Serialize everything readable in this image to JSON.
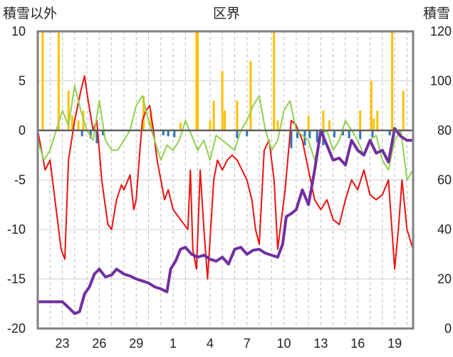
{
  "chart_data": {
    "type": "line",
    "title": "区界",
    "ylabel_left": "積雪以外",
    "ylabel_right": "積雪",
    "left_axis": {
      "min": -20,
      "max": 10,
      "ticks": [
        10,
        5,
        0,
        -5,
        -10,
        -15,
        -20
      ]
    },
    "right_axis": {
      "min": 0,
      "max": 120,
      "ticks": [
        120,
        100,
        80,
        60,
        40,
        20,
        0
      ]
    },
    "x_axis": {
      "min": 21,
      "max": 51.5,
      "tick_positions": [
        23,
        26,
        29,
        32,
        35,
        38,
        41,
        44,
        47,
        50
      ],
      "tick_labels": [
        "23",
        "26",
        "29",
        "1",
        "4",
        "7",
        "10",
        "13",
        "16",
        "19"
      ]
    },
    "grid": {
      "vertical_dashed": true,
      "horizontal": true,
      "zero_line": true
    },
    "colors": {
      "temp_max": "#f0f000",
      "temp_min": "#ee1111",
      "temp_mean": "#92d050",
      "precip": "#ffc000",
      "snow_decrease": "#2e75b6",
      "snow_depth": "#7030a0",
      "axes": "#808080",
      "zero_line": "#606060"
    },
    "series": [
      {
        "axis": "left",
        "style": "line",
        "color": "#ee1111",
        "points": [
          [
            21,
            0
          ],
          [
            21.3,
            -2
          ],
          [
            21.6,
            -4
          ],
          [
            22,
            -3
          ],
          [
            22.5,
            -8
          ],
          [
            22.9,
            -12
          ],
          [
            23.2,
            -13
          ],
          [
            23.5,
            -3
          ],
          [
            24,
            1
          ],
          [
            24.5,
            4
          ],
          [
            24.8,
            5.5
          ],
          [
            25.1,
            3
          ],
          [
            25.5,
            0
          ],
          [
            25.8,
            1
          ],
          [
            26.2,
            -5
          ],
          [
            26.7,
            -9.5
          ],
          [
            27,
            -10
          ],
          [
            27.4,
            -7
          ],
          [
            27.8,
            -5.5
          ],
          [
            28,
            -6
          ],
          [
            28.5,
            -4.5
          ],
          [
            28.8,
            -8
          ],
          [
            29,
            -7
          ],
          [
            29.3,
            -2
          ],
          [
            29.5,
            1
          ],
          [
            29.8,
            2
          ],
          [
            30.1,
            2.5
          ],
          [
            30.4,
            0
          ],
          [
            30.7,
            -3
          ],
          [
            31,
            -5
          ],
          [
            31.3,
            -7
          ],
          [
            31.6,
            -6
          ],
          [
            32,
            -8
          ],
          [
            32.3,
            -8.5
          ],
          [
            32.6,
            -9
          ],
          [
            32.9,
            -9.5
          ],
          [
            33.2,
            -10
          ],
          [
            33.4,
            -4
          ],
          [
            33.6,
            -12
          ],
          [
            33.9,
            -14
          ],
          [
            34.2,
            -4
          ],
          [
            34.5,
            -10
          ],
          [
            34.8,
            -15
          ],
          [
            35,
            -11
          ],
          [
            35.3,
            -5
          ],
          [
            35.6,
            -3
          ],
          [
            36,
            -4
          ],
          [
            36.4,
            -3
          ],
          [
            36.8,
            -2.5
          ],
          [
            37.2,
            -3
          ],
          [
            37.6,
            -4
          ],
          [
            38,
            -5
          ],
          [
            38.4,
            -7
          ],
          [
            38.7,
            -10
          ],
          [
            39,
            -11.5
          ],
          [
            39.4,
            -2
          ],
          [
            39.8,
            -1
          ],
          [
            40.2,
            -5
          ],
          [
            40.5,
            -12
          ],
          [
            40.8,
            -9
          ],
          [
            41.1,
            -6
          ],
          [
            41.6,
            1
          ],
          [
            42,
            0.5
          ],
          [
            42.5,
            -1
          ],
          [
            43,
            -4
          ],
          [
            43.5,
            -7
          ],
          [
            44,
            -8
          ],
          [
            44.5,
            -7
          ],
          [
            45,
            -9
          ],
          [
            45.5,
            -9.5
          ],
          [
            46,
            -7
          ],
          [
            46.5,
            -5
          ],
          [
            47,
            -6
          ],
          [
            47.5,
            -4
          ],
          [
            48,
            -6.5
          ],
          [
            48.5,
            -7
          ],
          [
            49,
            -6.5
          ],
          [
            49.5,
            -5
          ],
          [
            50,
            -14
          ],
          [
            50.3,
            -10
          ],
          [
            50.6,
            -5
          ],
          [
            51,
            -10
          ],
          [
            51.5,
            -12
          ]
        ]
      },
      {
        "axis": "left",
        "style": "line",
        "color": "#92d050",
        "points": [
          [
            21,
            -1
          ],
          [
            21.5,
            -3
          ],
          [
            22,
            -2
          ],
          [
            22.5,
            0
          ],
          [
            23,
            2
          ],
          [
            23.5,
            0.5
          ],
          [
            24,
            4.5
          ],
          [
            24.5,
            2
          ],
          [
            25,
            0
          ],
          [
            25.5,
            -1
          ],
          [
            26,
            3
          ],
          [
            26.5,
            -1
          ],
          [
            27,
            -2
          ],
          [
            27.5,
            -2
          ],
          [
            28,
            -1
          ],
          [
            28.5,
            0
          ],
          [
            29,
            2.5
          ],
          [
            29.5,
            3.5
          ],
          [
            30,
            1
          ],
          [
            30.5,
            -1
          ],
          [
            31,
            -3
          ],
          [
            31.5,
            -1.5
          ],
          [
            32,
            -2
          ],
          [
            32.5,
            -1
          ],
          [
            33,
            1
          ],
          [
            33.5,
            -0.5
          ],
          [
            34,
            -2
          ],
          [
            34.5,
            -1
          ],
          [
            35,
            -3
          ],
          [
            35.5,
            -0.5
          ],
          [
            36,
            -1
          ],
          [
            36.5,
            -1.5
          ],
          [
            37,
            -2
          ],
          [
            37.5,
            0
          ],
          [
            38,
            1
          ],
          [
            38.5,
            2.5
          ],
          [
            39,
            3.5
          ],
          [
            39.5,
            0
          ],
          [
            40,
            -2
          ],
          [
            40.5,
            -1
          ],
          [
            41,
            2
          ],
          [
            41.5,
            3
          ],
          [
            42,
            0
          ],
          [
            42.5,
            -0.5
          ],
          [
            43,
            -1
          ],
          [
            43.5,
            -3
          ],
          [
            44,
            -0.5
          ],
          [
            44.5,
            0
          ],
          [
            45,
            -2
          ],
          [
            45.5,
            -1
          ],
          [
            46,
            1
          ],
          [
            46.5,
            0
          ],
          [
            47,
            -1
          ],
          [
            47.5,
            -2.5
          ],
          [
            48,
            -1
          ],
          [
            48.5,
            -0.5
          ],
          [
            49,
            -3
          ],
          [
            49.5,
            -4
          ],
          [
            50,
            -1
          ],
          [
            50.5,
            0
          ],
          [
            51,
            -5
          ],
          [
            51.5,
            -4
          ]
        ]
      },
      {
        "axis": "left",
        "style": "line",
        "color": "#7030a0",
        "points": [
          [
            21,
            -17.3
          ],
          [
            23,
            -17.3
          ],
          [
            23.6,
            -18
          ],
          [
            24,
            -18.5
          ],
          [
            24.4,
            -18.3
          ],
          [
            24.8,
            -16.5
          ],
          [
            25.2,
            -15.8
          ],
          [
            25.6,
            -14.5
          ],
          [
            26,
            -14
          ],
          [
            26.5,
            -14.8
          ],
          [
            27,
            -14.6
          ],
          [
            27.4,
            -14
          ],
          [
            28,
            -14.5
          ],
          [
            28.5,
            -14.7
          ],
          [
            29,
            -15
          ],
          [
            29.5,
            -15.2
          ],
          [
            30,
            -15.4
          ],
          [
            30.5,
            -15.8
          ],
          [
            31,
            -16
          ],
          [
            31.5,
            -16.3
          ],
          [
            31.8,
            -14
          ],
          [
            32.2,
            -13.2
          ],
          [
            32.6,
            -12
          ],
          [
            33,
            -11.8
          ],
          [
            33.5,
            -12.5
          ],
          [
            34,
            -12.8
          ],
          [
            34.5,
            -12.6
          ],
          [
            35,
            -13
          ],
          [
            35.5,
            -13.2
          ],
          [
            36,
            -12.8
          ],
          [
            36.5,
            -13.5
          ],
          [
            37,
            -12
          ],
          [
            37.5,
            -11.8
          ],
          [
            38,
            -12.5
          ],
          [
            38.5,
            -12.1
          ],
          [
            39,
            -12
          ],
          [
            39.5,
            -12.4
          ],
          [
            40,
            -12.6
          ],
          [
            40.5,
            -12.8
          ],
          [
            40.9,
            -11.5
          ],
          [
            41.2,
            -8.7
          ],
          [
            41.6,
            -8.4
          ],
          [
            42,
            -8
          ],
          [
            42.5,
            -6
          ],
          [
            43,
            -7.5
          ],
          [
            43.5,
            -4
          ],
          [
            44,
            0
          ],
          [
            44.5,
            -1.5
          ],
          [
            45,
            -3
          ],
          [
            45.5,
            -2.8
          ],
          [
            46,
            -3.5
          ],
          [
            46.5,
            -1
          ],
          [
            47,
            -2
          ],
          [
            47.5,
            -2.5
          ],
          [
            48,
            -1
          ],
          [
            48.5,
            -2.3
          ],
          [
            49,
            -2
          ],
          [
            49.5,
            -3.2
          ],
          [
            50,
            0.2
          ],
          [
            50.5,
            -0.6
          ],
          [
            51,
            -1
          ],
          [
            51.5,
            -1
          ]
        ]
      },
      {
        "axis": "left",
        "style": "bar",
        "color": "#ffc000",
        "points": [
          [
            21.4,
            10
          ],
          [
            22.7,
            10
          ],
          [
            23.5,
            4
          ],
          [
            23.8,
            1.5
          ],
          [
            24.3,
            1
          ],
          [
            24.7,
            2
          ],
          [
            29.6,
            3.5
          ],
          [
            30.2,
            2
          ],
          [
            32.6,
            0.8
          ],
          [
            33.9,
            10
          ],
          [
            34,
            10
          ],
          [
            35,
            1
          ],
          [
            35.3,
            3
          ],
          [
            36,
            6
          ],
          [
            36.2,
            2
          ],
          [
            37.2,
            3
          ],
          [
            38.3,
            7
          ],
          [
            40.2,
            10
          ],
          [
            40.5,
            1
          ],
          [
            43,
            1.5
          ],
          [
            44.2,
            2
          ],
          [
            44.7,
            1
          ],
          [
            47.2,
            2
          ],
          [
            48.1,
            5
          ],
          [
            48.3,
            1.2
          ],
          [
            48.6,
            2
          ],
          [
            49.8,
            10
          ],
          [
            50.7,
            4
          ]
        ]
      },
      {
        "axis": "left",
        "style": "bar",
        "color": "#2e75b6",
        "points": [
          [
            24.6,
            -0.6
          ],
          [
            25.3,
            -0.8
          ],
          [
            25.8,
            -1.3
          ],
          [
            26.3,
            -0.5
          ],
          [
            31.2,
            -0.5
          ],
          [
            31.6,
            -0.6
          ],
          [
            32.1,
            -0.7
          ],
          [
            37.2,
            -0.8
          ],
          [
            38,
            -0.6
          ],
          [
            41.6,
            -1.8
          ],
          [
            42.1,
            -0.8
          ],
          [
            42.7,
            -1.5
          ],
          [
            43.1,
            -0.8
          ],
          [
            43.7,
            -1.2
          ],
          [
            44.2,
            -1.5
          ],
          [
            45.1,
            -0.7
          ],
          [
            45.8,
            -0.5
          ],
          [
            46.3,
            -0.8
          ],
          [
            47.2,
            -0.9
          ],
          [
            48.2,
            -0.7
          ],
          [
            49.6,
            -0.5
          ]
        ]
      }
    ]
  }
}
